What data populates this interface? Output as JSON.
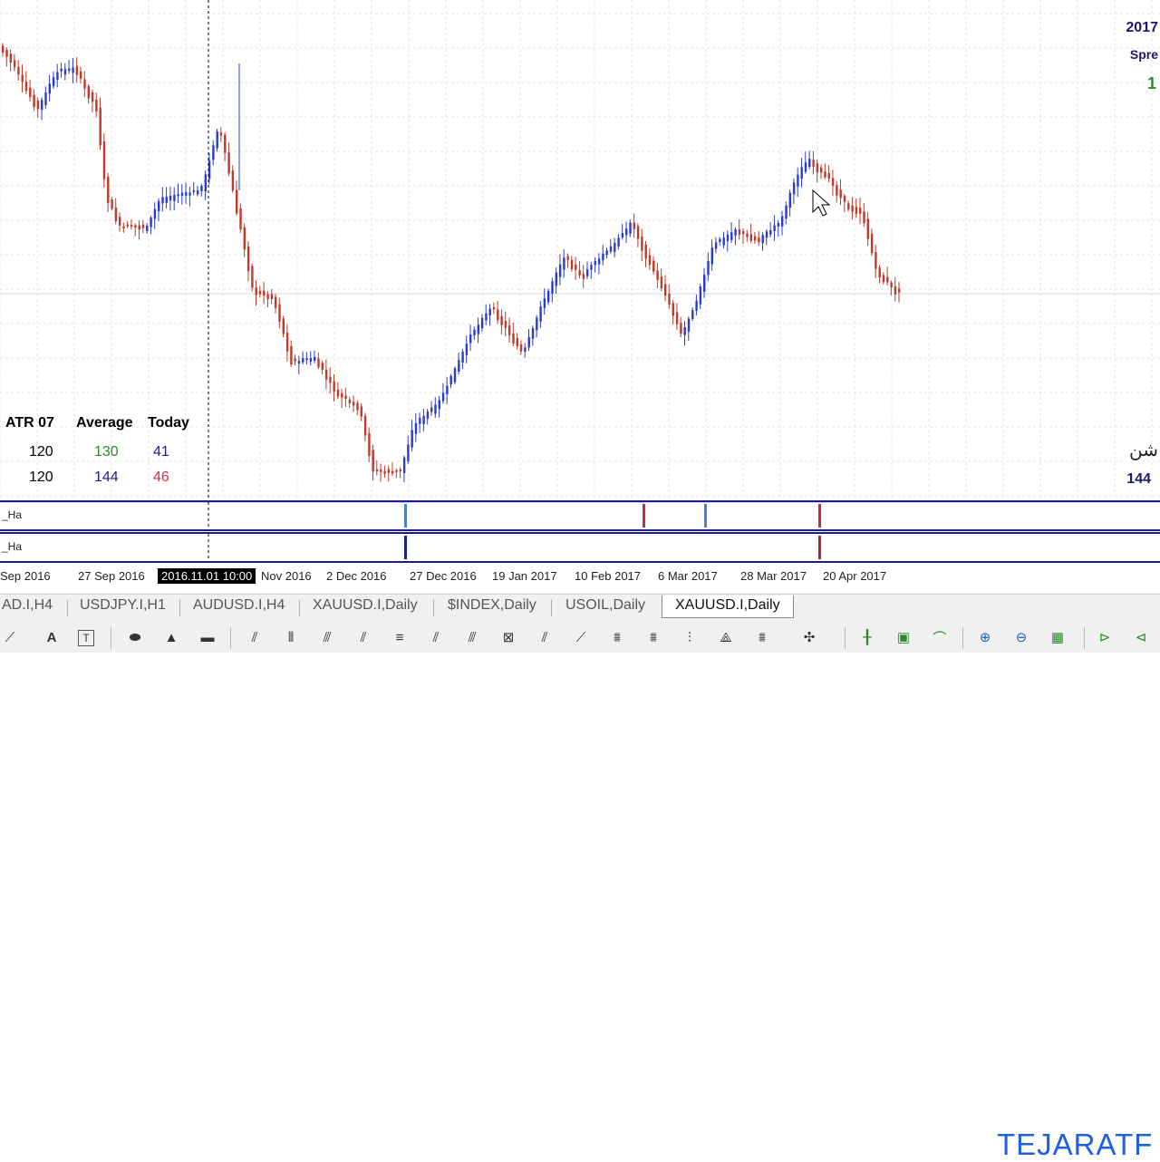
{
  "chart": {
    "symbol": "XAUUSD.I",
    "timeframe": "Daily",
    "up_color": "#2a3bd0",
    "down_color": "#c0392b",
    "crosshair_time": "2016.11.01 10:00",
    "time_labels": [
      "Sep 2016",
      "27 Sep 2016",
      "Nov 2016",
      "2 Dec 2016",
      "27 Dec 2016",
      "19 Jan 2017",
      "10 Feb 2017",
      "6 Mar 2017",
      "28 Mar 2017",
      "20 Apr 2017"
    ]
  },
  "atr_panel": {
    "header": [
      "ATR 07",
      "Average",
      "Today"
    ],
    "rows": [
      {
        "atr": "120",
        "average": "130",
        "today": "41",
        "today_color": "#b03030",
        "avg_color": "#2a8a2a"
      },
      {
        "atr": "120",
        "average": "144",
        "today": "46",
        "today_color": "#c03040",
        "avg_color": "#222222"
      }
    ]
  },
  "right_info": {
    "line1": "2017",
    "line2": "Spre",
    "line3": "1",
    "line4": "شن",
    "line5": "144"
  },
  "indicators": [
    {
      "label": "_Ha"
    },
    {
      "label": "_Ha"
    }
  ],
  "logo": "TEJARATF",
  "tabs": [
    {
      "label": "AD.I,H4"
    },
    {
      "label": "USDJPY.I,H1"
    },
    {
      "label": "AUDUSD.I,H4"
    },
    {
      "label": "XAUUSD.I,Daily"
    },
    {
      "label": "$INDEX,Daily"
    },
    {
      "label": "USOIL,Daily"
    },
    {
      "label": "XAUUSD.I,Daily",
      "active": true
    }
  ],
  "toolbar": {
    "icons": [
      "trendline-icon",
      "text-icon",
      "label-icon",
      "ellipse-icon",
      "triangle-icon",
      "rectangle-icon",
      "fibo-fan-icon",
      "fibo-retracement-icon",
      "andrews-pitchfork-icon",
      "channel-icon",
      "fibo-channel-icon",
      "grid-icon",
      "gann-line-icon",
      "gann-fan-icon",
      "gann-grid-icon",
      "elliott-wave-icon",
      "cycle-lines-icon",
      "arrow-icon",
      "bar-chart-icon",
      "candlestick-icon",
      "line-chart-icon",
      "zoom-in-icon",
      "zoom-out-icon",
      "tile-windows-icon",
      "chart-shift-icon",
      "autoscroll-icon"
    ]
  }
}
